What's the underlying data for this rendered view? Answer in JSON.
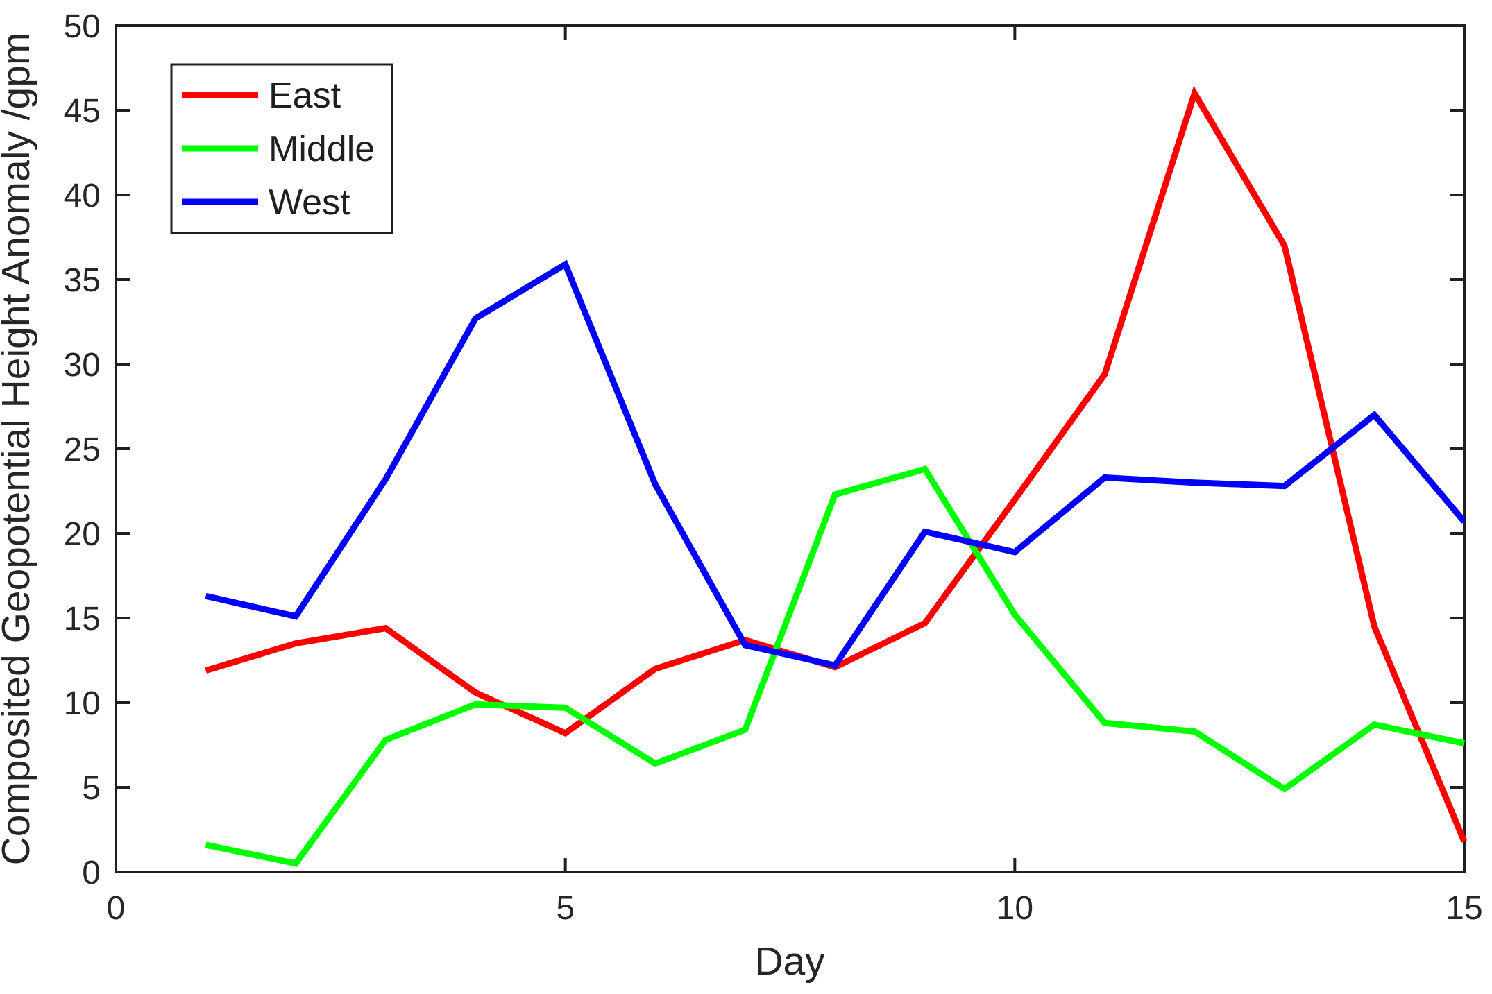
{
  "figure": {
    "background": "#ffffff",
    "axis_color": "#1f1f1f",
    "tick_label_color": "#262626",
    "axis_label_color": "#262626"
  },
  "chart_data": {
    "type": "line",
    "title": "",
    "xlabel": "Day",
    "ylabel": "Composited Geopotential Height Anomaly /gpm",
    "x": [
      1,
      2,
      3,
      4,
      5,
      6,
      7,
      8,
      9,
      10,
      11,
      12,
      13,
      14,
      15
    ],
    "series": [
      {
        "name": "East",
        "color": "#ff0000",
        "values": [
          11.9,
          13.5,
          14.4,
          10.6,
          8.2,
          12.0,
          13.7,
          12.1,
          14.7,
          22.0,
          29.4,
          46.0,
          37.0,
          14.5,
          1.8
        ]
      },
      {
        "name": "Middle",
        "color": "#00ff00",
        "values": [
          1.6,
          0.5,
          7.8,
          9.9,
          9.7,
          6.4,
          8.4,
          22.3,
          23.8,
          15.2,
          8.8,
          8.3,
          4.9,
          8.7,
          7.6
        ]
      },
      {
        "name": "West",
        "color": "#0000ff",
        "values": [
          16.3,
          15.1,
          23.2,
          32.7,
          35.9,
          22.9,
          13.4,
          12.2,
          20.1,
          18.9,
          23.3,
          23.0,
          22.8,
          27.0,
          20.7
        ]
      }
    ],
    "xlim": [
      0,
      15
    ],
    "ylim": [
      0,
      50
    ],
    "xticks": [
      0,
      5,
      10,
      15
    ],
    "yticks": [
      0,
      5,
      10,
      15,
      20,
      25,
      30,
      35,
      40,
      45,
      50
    ],
    "grid": false,
    "legend_position": "upper-left",
    "legend_labels": [
      "East",
      "Middle",
      "West"
    ]
  }
}
